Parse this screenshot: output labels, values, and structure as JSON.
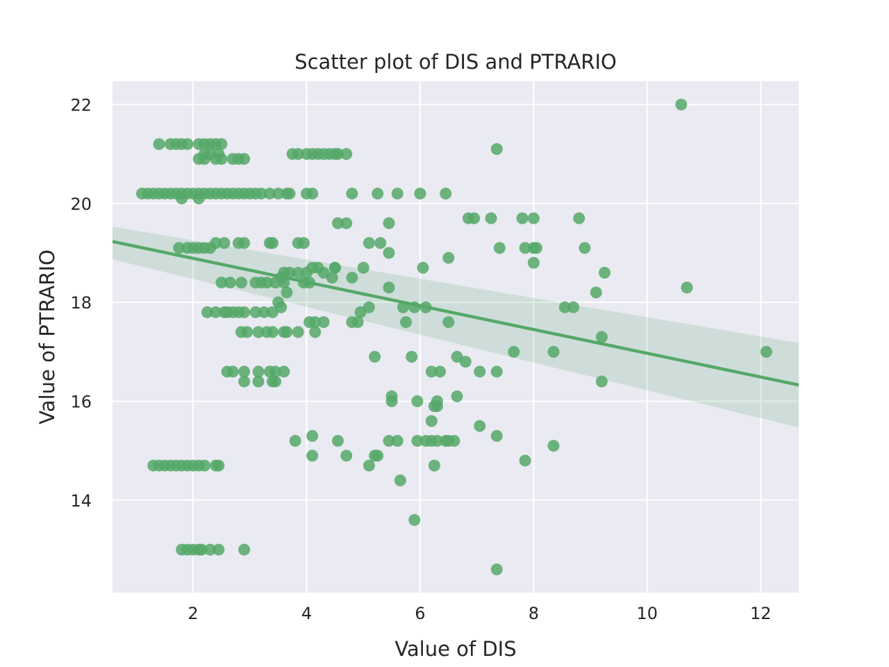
{
  "chart_data": {
    "type": "scatter",
    "title": "Scatter plot of DIS and PTRARIO",
    "xlabel": "Value of DIS",
    "ylabel": "Value of PTRARIO",
    "xlim": [
      0.58,
      12.67
    ],
    "ylim": [
      12.13,
      22.47
    ],
    "xticks": [
      2,
      4,
      6,
      8,
      10,
      12
    ],
    "yticks": [
      14,
      16,
      18,
      20,
      22
    ],
    "grid": true,
    "colors": {
      "background": "#eaeaf2",
      "grid": "#ffffff",
      "points": "#55a868",
      "band": "#55a868"
    },
    "regression": {
      "x": [
        0.58,
        12.67
      ],
      "y": [
        19.23,
        16.33
      ],
      "ci_upper": [
        19.53,
        17.18
      ],
      "ci_lower": [
        18.87,
        15.47
      ]
    },
    "points": [
      [
        1.1,
        20.2
      ],
      [
        1.2,
        20.2
      ],
      [
        1.3,
        20.2
      ],
      [
        1.4,
        20.2
      ],
      [
        1.5,
        20.2
      ],
      [
        1.6,
        20.2
      ],
      [
        1.7,
        20.2
      ],
      [
        1.8,
        20.2
      ],
      [
        1.9,
        20.2
      ],
      [
        2.0,
        20.2
      ],
      [
        2.1,
        20.2
      ],
      [
        2.2,
        20.2
      ],
      [
        2.3,
        20.2
      ],
      [
        2.4,
        20.2
      ],
      [
        2.5,
        20.2
      ],
      [
        2.6,
        20.2
      ],
      [
        2.7,
        20.2
      ],
      [
        2.8,
        20.2
      ],
      [
        2.9,
        20.2
      ],
      [
        3.0,
        20.2
      ],
      [
        3.1,
        20.2
      ],
      [
        3.2,
        20.2
      ],
      [
        3.35,
        20.2
      ],
      [
        3.5,
        20.2
      ],
      [
        3.65,
        20.2
      ],
      [
        3.7,
        20.2
      ],
      [
        4.0,
        20.2
      ],
      [
        4.1,
        20.2
      ],
      [
        4.8,
        20.2
      ],
      [
        5.25,
        20.2
      ],
      [
        5.6,
        20.2
      ],
      [
        6.0,
        20.2
      ],
      [
        6.45,
        20.2
      ],
      [
        1.8,
        20.1
      ],
      [
        2.1,
        20.1
      ],
      [
        1.4,
        21.2
      ],
      [
        1.6,
        21.2
      ],
      [
        1.7,
        21.2
      ],
      [
        1.8,
        21.2
      ],
      [
        1.9,
        21.2
      ],
      [
        2.1,
        21.2
      ],
      [
        2.2,
        21.2
      ],
      [
        2.3,
        21.2
      ],
      [
        2.4,
        21.2
      ],
      [
        2.5,
        21.2
      ],
      [
        2.1,
        20.9
      ],
      [
        2.2,
        20.9
      ],
      [
        2.4,
        20.9
      ],
      [
        2.5,
        20.9
      ],
      [
        2.7,
        20.9
      ],
      [
        2.8,
        20.9
      ],
      [
        2.9,
        20.9
      ],
      [
        2.2,
        21.0
      ],
      [
        2.3,
        21.0
      ],
      [
        2.45,
        21.0
      ],
      [
        3.75,
        21.0
      ],
      [
        3.85,
        21.0
      ],
      [
        4.0,
        21.0
      ],
      [
        4.1,
        21.0
      ],
      [
        4.2,
        21.0
      ],
      [
        4.3,
        21.0
      ],
      [
        4.4,
        21.0
      ],
      [
        4.5,
        21.0
      ],
      [
        4.55,
        21.0
      ],
      [
        4.7,
        21.0
      ],
      [
        1.75,
        19.1
      ],
      [
        1.9,
        19.1
      ],
      [
        2.0,
        19.1
      ],
      [
        2.1,
        19.1
      ],
      [
        2.2,
        19.1
      ],
      [
        2.3,
        19.1
      ],
      [
        2.4,
        19.2
      ],
      [
        2.55,
        19.2
      ],
      [
        2.8,
        19.2
      ],
      [
        2.9,
        19.2
      ],
      [
        3.35,
        19.2
      ],
      [
        3.4,
        19.2
      ],
      [
        3.85,
        19.2
      ],
      [
        3.95,
        19.2
      ],
      [
        2.5,
        18.4
      ],
      [
        2.65,
        18.4
      ],
      [
        2.85,
        18.4
      ],
      [
        3.1,
        18.4
      ],
      [
        3.2,
        18.4
      ],
      [
        3.3,
        18.4
      ],
      [
        3.45,
        18.4
      ],
      [
        3.6,
        18.4
      ],
      [
        3.95,
        18.4
      ],
      [
        4.05,
        18.4
      ],
      [
        3.6,
        18.6
      ],
      [
        3.7,
        18.6
      ],
      [
        3.85,
        18.6
      ],
      [
        4.0,
        18.6
      ],
      [
        4.1,
        18.7
      ],
      [
        4.2,
        18.7
      ],
      [
        4.3,
        18.6
      ],
      [
        4.5,
        18.7
      ],
      [
        4.45,
        18.5
      ],
      [
        4.8,
        18.5
      ],
      [
        3.55,
        18.5
      ],
      [
        3.65,
        18.2
      ],
      [
        3.5,
        18.0
      ],
      [
        3.55,
        17.9
      ],
      [
        2.25,
        17.8
      ],
      [
        2.4,
        17.8
      ],
      [
        2.55,
        17.8
      ],
      [
        2.6,
        17.8
      ],
      [
        2.7,
        17.8
      ],
      [
        2.8,
        17.8
      ],
      [
        2.9,
        17.8
      ],
      [
        3.1,
        17.8
      ],
      [
        3.25,
        17.8
      ],
      [
        3.4,
        17.8
      ],
      [
        2.85,
        17.4
      ],
      [
        2.95,
        17.4
      ],
      [
        3.15,
        17.4
      ],
      [
        3.3,
        17.4
      ],
      [
        3.4,
        17.4
      ],
      [
        3.6,
        17.4
      ],
      [
        3.65,
        17.4
      ],
      [
        3.85,
        17.4
      ],
      [
        4.05,
        17.6
      ],
      [
        4.15,
        17.6
      ],
      [
        4.3,
        17.6
      ],
      [
        4.15,
        17.4
      ],
      [
        4.8,
        17.6
      ],
      [
        4.9,
        17.6
      ],
      [
        2.6,
        16.6
      ],
      [
        2.7,
        16.6
      ],
      [
        2.9,
        16.6
      ],
      [
        3.15,
        16.6
      ],
      [
        3.35,
        16.6
      ],
      [
        3.45,
        16.6
      ],
      [
        3.6,
        16.6
      ],
      [
        2.9,
        16.4
      ],
      [
        3.15,
        16.4
      ],
      [
        3.4,
        16.4
      ],
      [
        3.45,
        16.4
      ],
      [
        1.3,
        14.7
      ],
      [
        1.4,
        14.7
      ],
      [
        1.5,
        14.7
      ],
      [
        1.6,
        14.7
      ],
      [
        1.7,
        14.7
      ],
      [
        1.8,
        14.7
      ],
      [
        1.9,
        14.7
      ],
      [
        2.0,
        14.7
      ],
      [
        2.1,
        14.7
      ],
      [
        2.2,
        14.7
      ],
      [
        2.4,
        14.7
      ],
      [
        2.45,
        14.7
      ],
      [
        1.8,
        13.0
      ],
      [
        1.9,
        13.0
      ],
      [
        2.0,
        13.0
      ],
      [
        2.1,
        13.0
      ],
      [
        2.15,
        13.0
      ],
      [
        2.3,
        13.0
      ],
      [
        2.45,
        13.0
      ],
      [
        2.9,
        13.0
      ],
      [
        3.8,
        15.2
      ],
      [
        4.1,
        15.3
      ],
      [
        4.1,
        14.9
      ],
      [
        4.55,
        15.2
      ],
      [
        4.7,
        14.9
      ],
      [
        5.1,
        14.7
      ],
      [
        5.2,
        14.9
      ],
      [
        5.25,
        14.9
      ],
      [
        5.45,
        15.2
      ],
      [
        5.6,
        15.2
      ],
      [
        5.65,
        14.4
      ],
      [
        5.9,
        13.6
      ],
      [
        5.95,
        15.2
      ],
      [
        6.1,
        15.2
      ],
      [
        6.2,
        15.2
      ],
      [
        6.3,
        15.2
      ],
      [
        6.45,
        15.2
      ],
      [
        6.5,
        15.2
      ],
      [
        6.6,
        15.2
      ],
      [
        6.25,
        14.7
      ],
      [
        6.2,
        15.6
      ],
      [
        6.25,
        15.9
      ],
      [
        6.3,
        16.0
      ],
      [
        6.3,
        15.9
      ],
      [
        5.5,
        16.1
      ],
      [
        5.5,
        16.0
      ],
      [
        5.95,
        16.0
      ],
      [
        6.65,
        16.1
      ],
      [
        4.55,
        19.6
      ],
      [
        4.7,
        19.6
      ],
      [
        5.45,
        19.6
      ],
      [
        5.1,
        19.2
      ],
      [
        5.3,
        19.2
      ],
      [
        5.45,
        19.0
      ],
      [
        4.5,
        18.7
      ],
      [
        5.0,
        18.7
      ],
      [
        6.05,
        18.7
      ],
      [
        6.5,
        18.9
      ],
      [
        5.45,
        18.3
      ],
      [
        5.1,
        17.9
      ],
      [
        4.95,
        17.8
      ],
      [
        5.7,
        17.9
      ],
      [
        5.9,
        17.9
      ],
      [
        6.1,
        17.9
      ],
      [
        5.75,
        17.6
      ],
      [
        6.5,
        17.6
      ],
      [
        5.2,
        16.9
      ],
      [
        5.85,
        16.9
      ],
      [
        6.2,
        16.6
      ],
      [
        6.35,
        16.6
      ],
      [
        6.65,
        16.9
      ],
      [
        6.8,
        16.8
      ],
      [
        7.05,
        16.6
      ],
      [
        7.35,
        16.6
      ],
      [
        7.65,
        17.0
      ],
      [
        6.85,
        19.7
      ],
      [
        6.95,
        19.7
      ],
      [
        7.25,
        19.7
      ],
      [
        7.8,
        19.7
      ],
      [
        8.0,
        19.7
      ],
      [
        8.8,
        19.7
      ],
      [
        7.4,
        19.1
      ],
      [
        7.85,
        19.1
      ],
      [
        8.0,
        19.1
      ],
      [
        8.05,
        19.1
      ],
      [
        8.9,
        19.1
      ],
      [
        8.0,
        18.8
      ],
      [
        8.55,
        17.9
      ],
      [
        8.7,
        17.9
      ],
      [
        9.1,
        18.2
      ],
      [
        9.25,
        18.6
      ],
      [
        9.2,
        17.3
      ],
      [
        8.35,
        17.0
      ],
      [
        7.05,
        15.5
      ],
      [
        7.35,
        15.3
      ],
      [
        7.85,
        14.8
      ],
      [
        8.35,
        15.1
      ],
      [
        9.2,
        16.4
      ],
      [
        7.35,
        12.6
      ],
      [
        7.35,
        21.1
      ],
      [
        10.6,
        22.0
      ],
      [
        10.7,
        18.3
      ],
      [
        12.1,
        17.0
      ]
    ]
  }
}
